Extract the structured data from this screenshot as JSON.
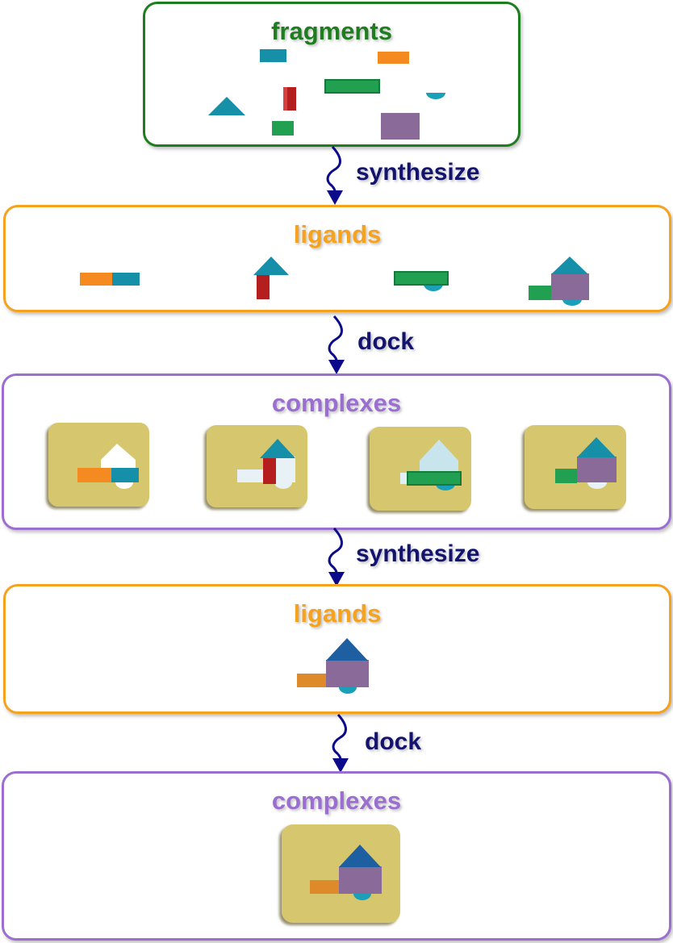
{
  "colors": {
    "fragments": "#1e7d1e",
    "ligands": "#f5a21e",
    "complexes": "#9b6fcf",
    "arrow": "#0a0a8a",
    "pocket": "#d6c66e",
    "teal": "#1690a8",
    "orange": "#f58a20",
    "green": "#20a050",
    "red": "#b41e1e",
    "purple": "#896a98",
    "blue": "#1d5fa0"
  },
  "stages": [
    {
      "title": "fragments"
    },
    {
      "title": "ligands"
    },
    {
      "title": "complexes"
    },
    {
      "title": "ligands"
    },
    {
      "title": "complexes"
    }
  ],
  "steps": [
    {
      "label": "synthesize"
    },
    {
      "label": "dock"
    },
    {
      "label": "synthesize"
    },
    {
      "label": "dock"
    }
  ]
}
